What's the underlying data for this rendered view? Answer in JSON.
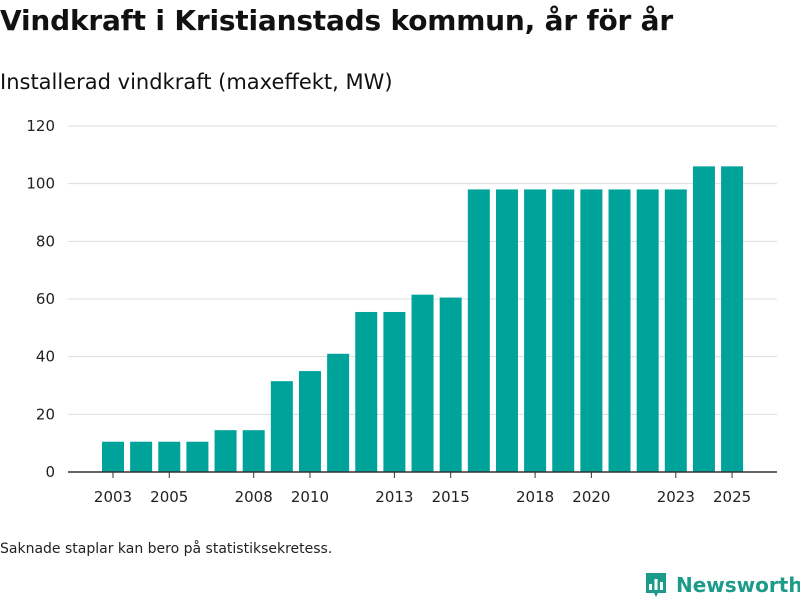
{
  "title": "Vindkraft i Kristianstads kommun, år för år",
  "subtitle": "Installerad vindkraft (maxeffekt, MW)",
  "footnote": "Saknade staplar kan bero på statistiksekretess.",
  "brand": {
    "name": "Newsworthy",
    "icon": "bar-chart-logo-icon"
  },
  "colors": {
    "bar": "#00a39a",
    "grid": "#dddddd",
    "axis": "#333333",
    "brand": "#1c9a8a"
  },
  "chart_data": {
    "type": "bar",
    "x": [
      2003,
      2004,
      2005,
      2006,
      2007,
      2008,
      2009,
      2010,
      2011,
      2012,
      2013,
      2014,
      2015,
      2016,
      2017,
      2018,
      2019,
      2020,
      2021,
      2022,
      2023,
      2024,
      2025
    ],
    "values": [
      10.5,
      10.5,
      10.5,
      10.5,
      14.5,
      14.5,
      31.5,
      35,
      41,
      55.5,
      55.5,
      61.5,
      60.5,
      98,
      98,
      98,
      98,
      98,
      98,
      98,
      98,
      106,
      106
    ],
    "x_tick_labels": [
      "2003",
      "2005",
      "2008",
      "2010",
      "2013",
      "2015",
      "2018",
      "2020",
      "2023",
      "2025"
    ],
    "y_ticks": [
      0,
      20,
      40,
      60,
      80,
      100,
      120
    ],
    "ylim": [
      0,
      120
    ],
    "xlabel": "",
    "ylabel": "",
    "grid": true,
    "legend": "none"
  }
}
